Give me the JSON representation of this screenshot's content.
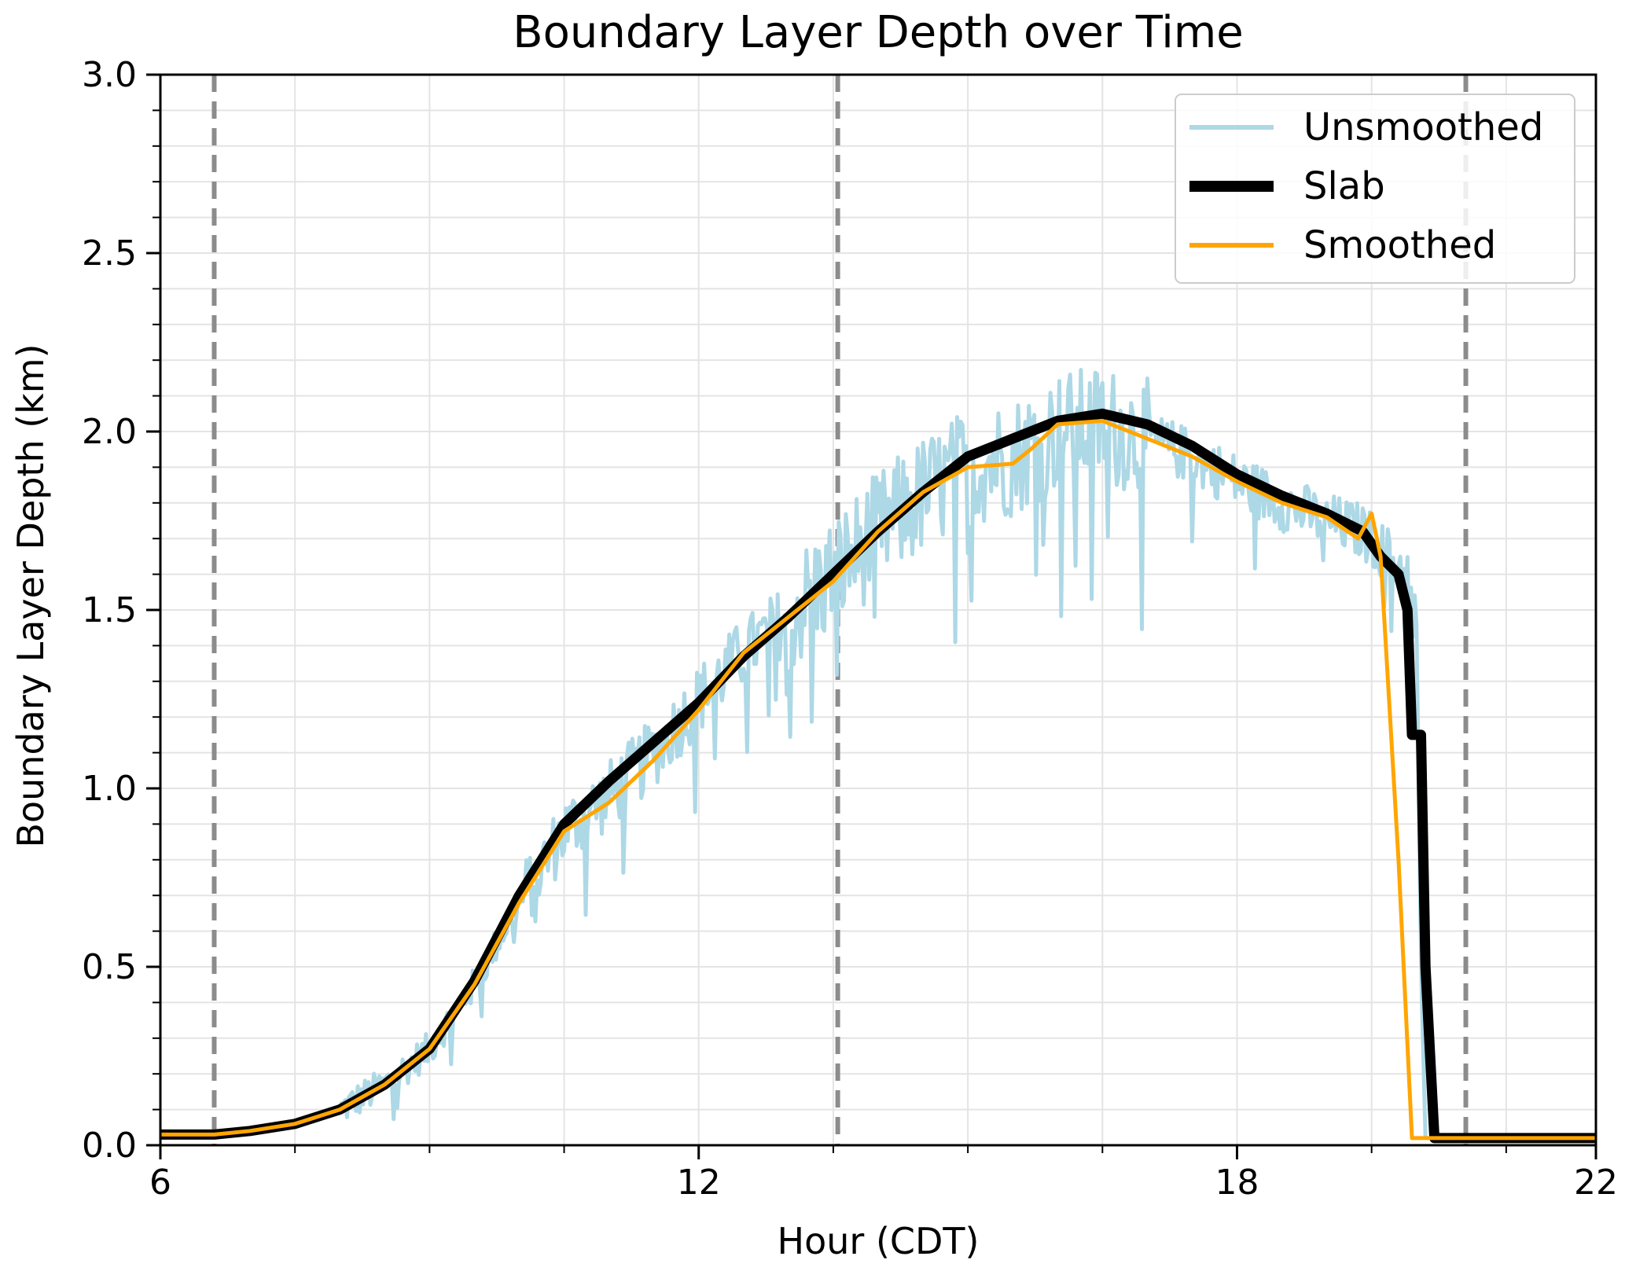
{
  "chart_data": {
    "type": "line",
    "title": "Boundary Layer Depth over Time",
    "xlabel": "Hour (CDT)",
    "ylabel": "Boundary Layer Depth (km)",
    "xlim": [
      6,
      22
    ],
    "ylim": [
      0.0,
      3.0
    ],
    "x_ticks": [
      6,
      12,
      18,
      22
    ],
    "x_tick_labels": [
      "6",
      "12",
      "18",
      "22"
    ],
    "x_minor_step": 1.5,
    "y_ticks": [
      0.0,
      0.5,
      1.0,
      1.5,
      2.0,
      2.5,
      3.0
    ],
    "y_tick_labels": [
      "0.0",
      "0.5",
      "1.0",
      "1.5",
      "2.0",
      "2.5",
      "3.0"
    ],
    "y_minor_step": 0.1,
    "grid": true,
    "legend_position": "top-right",
    "vertical_markers": [
      6.6,
      13.55,
      20.55
    ],
    "series": [
      {
        "name": "Unsmoothed",
        "color": "#add8e6",
        "noisy": true,
        "x": [
          6.0,
          6.6,
          7.0,
          7.5,
          8.0,
          8.5,
          9.0,
          9.5,
          10.0,
          10.5,
          11.0,
          11.5,
          12.0,
          12.5,
          13.0,
          13.5,
          14.0,
          14.5,
          15.0,
          15.5,
          16.0,
          16.5,
          17.0,
          17.5,
          18.0,
          18.5,
          19.0,
          19.4,
          19.7,
          19.9,
          20.0,
          20.05,
          20.1,
          20.2,
          22.0
        ],
        "y": [
          0.03,
          0.03,
          0.04,
          0.06,
          0.1,
          0.17,
          0.27,
          0.45,
          0.68,
          0.88,
          0.98,
          1.1,
          1.25,
          1.38,
          1.48,
          1.6,
          1.72,
          1.82,
          1.9,
          1.93,
          2.0,
          2.02,
          1.98,
          1.93,
          1.86,
          1.8,
          1.75,
          1.72,
          1.65,
          1.6,
          1.5,
          0.5,
          0.02,
          0.02,
          0.02
        ]
      },
      {
        "name": "Slab",
        "color": "#000000",
        "x": [
          6.0,
          6.6,
          7.0,
          7.5,
          8.0,
          8.5,
          9.0,
          9.5,
          10.0,
          10.5,
          11.0,
          11.5,
          12.0,
          12.5,
          13.0,
          13.5,
          14.0,
          14.5,
          15.0,
          15.5,
          16.0,
          16.5,
          17.0,
          17.5,
          18.0,
          18.5,
          19.0,
          19.4,
          19.6,
          19.8,
          19.9,
          19.95,
          20.05,
          20.1,
          20.2,
          22.0
        ],
        "y": [
          0.03,
          0.03,
          0.04,
          0.06,
          0.1,
          0.17,
          0.27,
          0.46,
          0.7,
          0.9,
          1.02,
          1.13,
          1.24,
          1.37,
          1.48,
          1.6,
          1.72,
          1.83,
          1.93,
          1.98,
          2.03,
          2.05,
          2.02,
          1.96,
          1.88,
          1.82,
          1.77,
          1.72,
          1.65,
          1.6,
          1.5,
          1.15,
          1.15,
          0.5,
          0.02,
          0.02
        ]
      },
      {
        "name": "Smoothed",
        "color": "#ffa500",
        "x": [
          6.0,
          6.6,
          7.0,
          7.5,
          8.0,
          8.5,
          9.0,
          9.5,
          10.0,
          10.5,
          11.0,
          11.5,
          12.0,
          12.5,
          13.0,
          13.5,
          14.0,
          14.5,
          15.0,
          15.5,
          15.7,
          16.0,
          16.5,
          17.0,
          17.5,
          18.0,
          18.5,
          19.0,
          19.35,
          19.5,
          19.6,
          19.8,
          19.95,
          20.1,
          22.0
        ],
        "y": [
          0.03,
          0.03,
          0.04,
          0.06,
          0.1,
          0.17,
          0.27,
          0.45,
          0.68,
          0.88,
          0.96,
          1.08,
          1.22,
          1.38,
          1.48,
          1.58,
          1.72,
          1.83,
          1.9,
          1.91,
          1.95,
          2.02,
          2.03,
          1.98,
          1.93,
          1.86,
          1.8,
          1.76,
          1.7,
          1.77,
          1.65,
          0.8,
          0.02,
          0.02,
          0.02
        ]
      }
    ]
  }
}
